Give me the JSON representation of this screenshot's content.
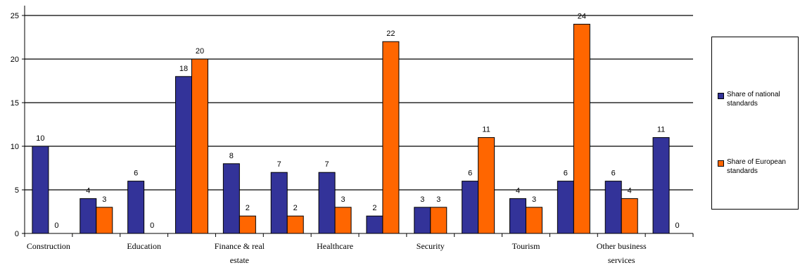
{
  "chart_data": {
    "type": "bar",
    "categories": [
      "Construction",
      "",
      "Education",
      "",
      "Finance & real estate",
      "",
      "Healthcare",
      "",
      "Security",
      "",
      "Tourism",
      "",
      "Other business services",
      ""
    ],
    "series": [
      {
        "name": "Share of national standards",
        "color": "#333399",
        "values": [
          10,
          4,
          6,
          18,
          8,
          7,
          7,
          2,
          3,
          6,
          4,
          6,
          6,
          11
        ]
      },
      {
        "name": "Share of European standards",
        "color": "#ff6600",
        "values": [
          0,
          3,
          0,
          20,
          2,
          2,
          3,
          22,
          3,
          11,
          3,
          24,
          4,
          0
        ]
      }
    ],
    "ylim": [
      0,
      25
    ],
    "yticks": [
      0,
      5,
      10,
      15,
      20,
      25
    ],
    "grid": true,
    "legend_position": "right"
  }
}
